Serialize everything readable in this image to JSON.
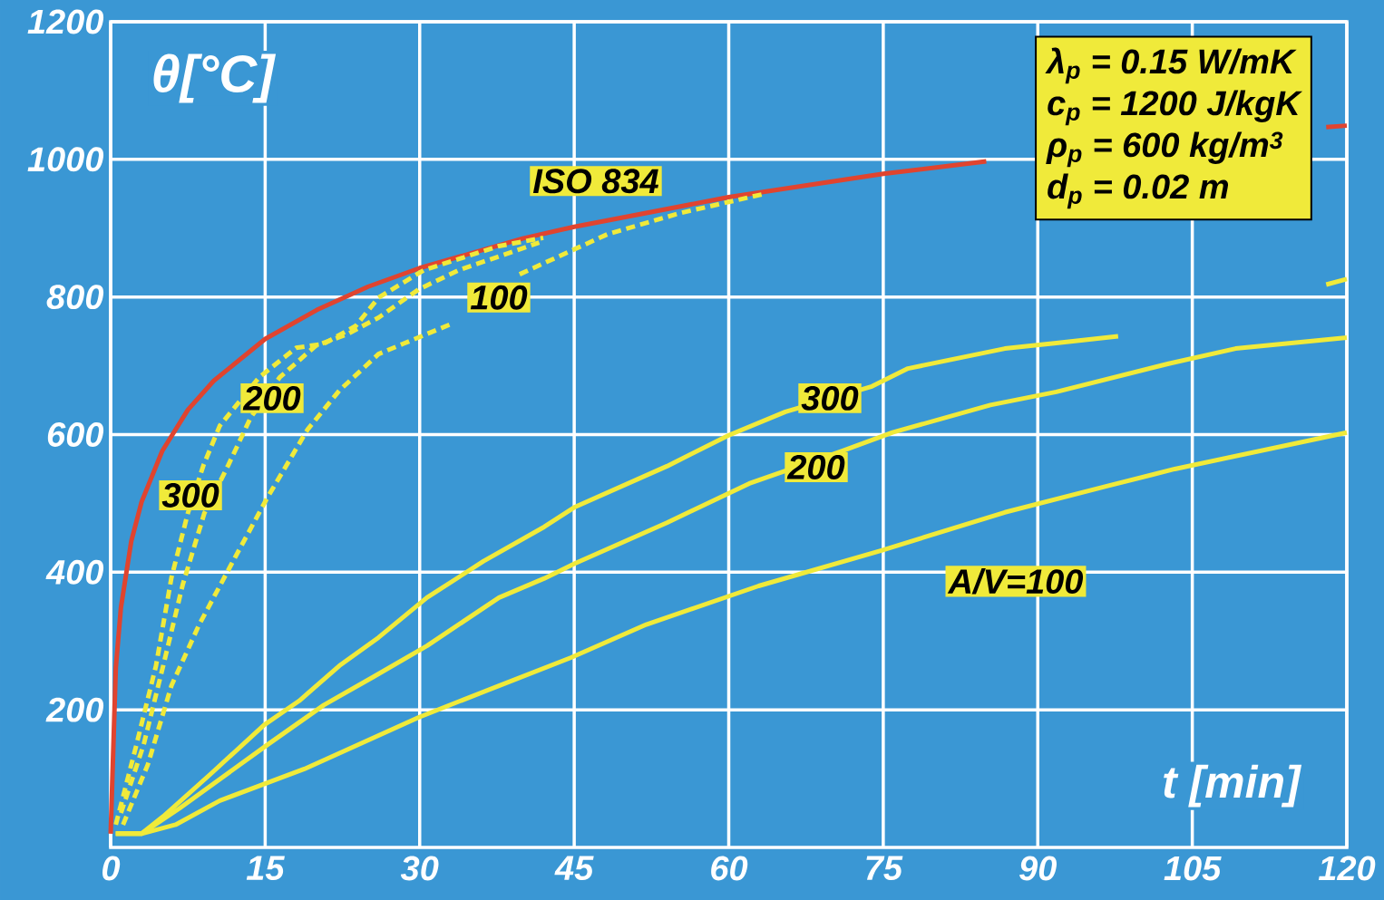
{
  "chart_data": {
    "type": "line",
    "xlabel": "t [min]",
    "ylabel": "θ[°C]",
    "xlim": [
      0,
      120
    ],
    "ylim": [
      0,
      1200
    ],
    "xticks": [
      0,
      15,
      30,
      45,
      60,
      75,
      90,
      105,
      120
    ],
    "yticks": [
      200,
      400,
      600,
      800,
      1000,
      1200
    ],
    "grid": true,
    "series": [
      {
        "name": "ISO 834",
        "color": "#e0442f",
        "line_style": "solid",
        "x": [
          0,
          0.5,
          1,
          2,
          3,
          5,
          7.5,
          10,
          15,
          20,
          25,
          30,
          40,
          45,
          60,
          75,
          85,
          90,
          105,
          118,
          120
        ],
        "values": [
          20,
          261,
          349,
          445,
          502,
          576,
          636,
          678,
          739,
          781,
          815,
          842,
          885,
          902,
          945,
          979,
          997,
          null,
          null,
          1047,
          1049
        ]
      },
      {
        "name": "300",
        "color": "#f0ea3a",
        "line_style": "dashed",
        "x": [
          0.5,
          2.5,
          4.4,
          5.9,
          7.5,
          9,
          10.6,
          14.4,
          18,
          20.7,
          23.8,
          26,
          30.4,
          37.7,
          42
        ],
        "values": [
          33,
          149,
          264,
          392,
          486,
          555,
          613,
          683,
          726,
          732,
          758,
          799,
          839,
          874,
          886
        ]
      },
      {
        "name": "200",
        "color": "#f0ea3a",
        "line_style": "dashed",
        "x": [
          1,
          3.2,
          5.1,
          7,
          9.1,
          11.4,
          13.6,
          16.4,
          19.9,
          23,
          26,
          29.9,
          33.8,
          41.6
        ],
        "values": [
          50,
          149,
          264,
          382,
          486,
          555,
          625,
          683,
          729,
          746,
          770,
          811,
          839,
          879
        ]
      },
      {
        "name": "100",
        "color": "#f0ea3a",
        "line_style": "dashed",
        "x": [
          1.2,
          3.6,
          5.9,
          8.6,
          11.7,
          15.2,
          19.1,
          22.2,
          26,
          28.4,
          33.1,
          35.4,
          39.7,
          48.2,
          55.3,
          63.2
        ],
        "values": [
          33,
          120,
          235,
          324,
          411,
          508,
          607,
          664,
          717,
          732,
          761,
          null,
          833,
          891,
          922,
          949
        ]
      },
      {
        "name": "300",
        "color": "#f0ea3a",
        "line_style": "solid",
        "x": [
          0.5,
          3,
          5.1,
          9.8,
          14.9,
          18.3,
          22.2,
          26,
          30.7,
          36.2,
          42.1,
          45.1,
          54,
          60,
          65.5,
          73.9,
          77.4,
          86.8,
          91.8,
          97.8,
          105,
          118,
          120
        ],
        "values": [
          20,
          20,
          45,
          108,
          178,
          213,
          264,
          305,
          363,
          416,
          466,
          495,
          554,
          599,
          633,
          670,
          696,
          725,
          733,
          743,
          null,
          818,
          826
        ]
      },
      {
        "name": "200",
        "color": "#f0ea3a",
        "line_style": "solid",
        "x": [
          0.5,
          3,
          6.7,
          15.2,
          20.7,
          25.4,
          30.7,
          37.7,
          42.1,
          45.1,
          54,
          62,
          71,
          75.9,
          85.4,
          91.8,
          102.7,
          109.2,
          120
        ],
        "values": [
          20,
          20,
          57,
          149,
          207,
          247,
          293,
          363,
          391,
          413,
          472,
          529,
          576,
          603,
          643,
          662,
          703,
          725,
          741
        ]
      },
      {
        "name": "A/V=100",
        "color": "#f0ea3a",
        "line_style": "solid",
        "x": [
          0.5,
          3,
          6.3,
          10.6,
          18.8,
          29.9,
          37.7,
          44.7,
          52,
          62.9,
          74.9,
          86.8,
          96.7,
          103.3,
          120
        ],
        "values": [
          20,
          20,
          33,
          68,
          114,
          189,
          235,
          276,
          324,
          380,
          432,
          487,
          525,
          550,
          603
        ]
      }
    ],
    "annotations": [
      "λ$_{p}$ = 0.15 W/mK",
      "c$_{p}$ = 1200 J/kgK",
      "ρ$_{p}$ = 600 kg/m$^{3}$",
      "d$_{p}$ = 0.02 m"
    ]
  }
}
